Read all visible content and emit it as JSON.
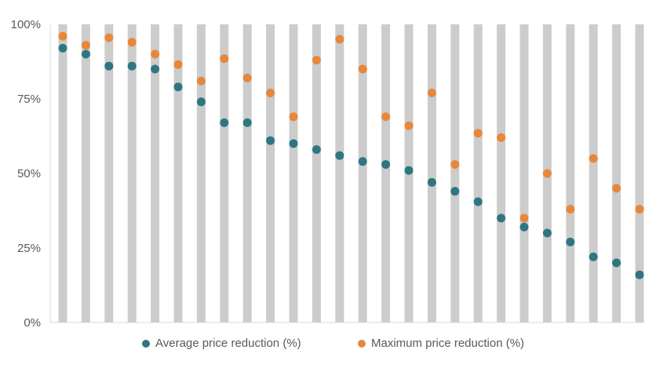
{
  "chart_data": {
    "type": "scatter",
    "title": "",
    "xlabel": "",
    "ylabel": "",
    "ylim": [
      0,
      100
    ],
    "yticks": [
      "0%",
      "25%",
      "50%",
      "75%",
      "100%"
    ],
    "ytick_values": [
      0,
      25,
      50,
      75,
      100
    ],
    "grid": false,
    "background_bars": {
      "count": 26,
      "value": 100,
      "color": "#cccccc"
    },
    "legend_position": "bottom",
    "x": [
      1,
      2,
      3,
      4,
      5,
      6,
      7,
      8,
      9,
      10,
      11,
      12,
      13,
      14,
      15,
      16,
      17,
      18,
      19,
      20,
      21,
      22,
      23,
      24,
      25,
      26
    ],
    "series": [
      {
        "name": "Average price reduction (%)",
        "color": "#2e7682",
        "values": [
          92,
          90,
          86,
          86,
          85,
          79,
          74,
          67,
          67,
          61,
          60,
          58,
          56,
          54,
          53,
          51,
          47,
          44,
          40.5,
          35,
          32,
          30,
          27,
          22,
          20,
          16
        ]
      },
      {
        "name": "Maximum price reduction (%)",
        "color": "#e8873a",
        "values": [
          96,
          93,
          95.5,
          94,
          90,
          86.5,
          81,
          88.5,
          82,
          77,
          69,
          88,
          95,
          85,
          69,
          66,
          77,
          53,
          63.5,
          62,
          35,
          50,
          38,
          55,
          45,
          38
        ]
      }
    ]
  },
  "legend": {
    "items": [
      {
        "label": "Average price reduction (%)",
        "color": "#2e7682"
      },
      {
        "label": "Maximum price reduction (%)",
        "color": "#e8873a"
      }
    ]
  }
}
